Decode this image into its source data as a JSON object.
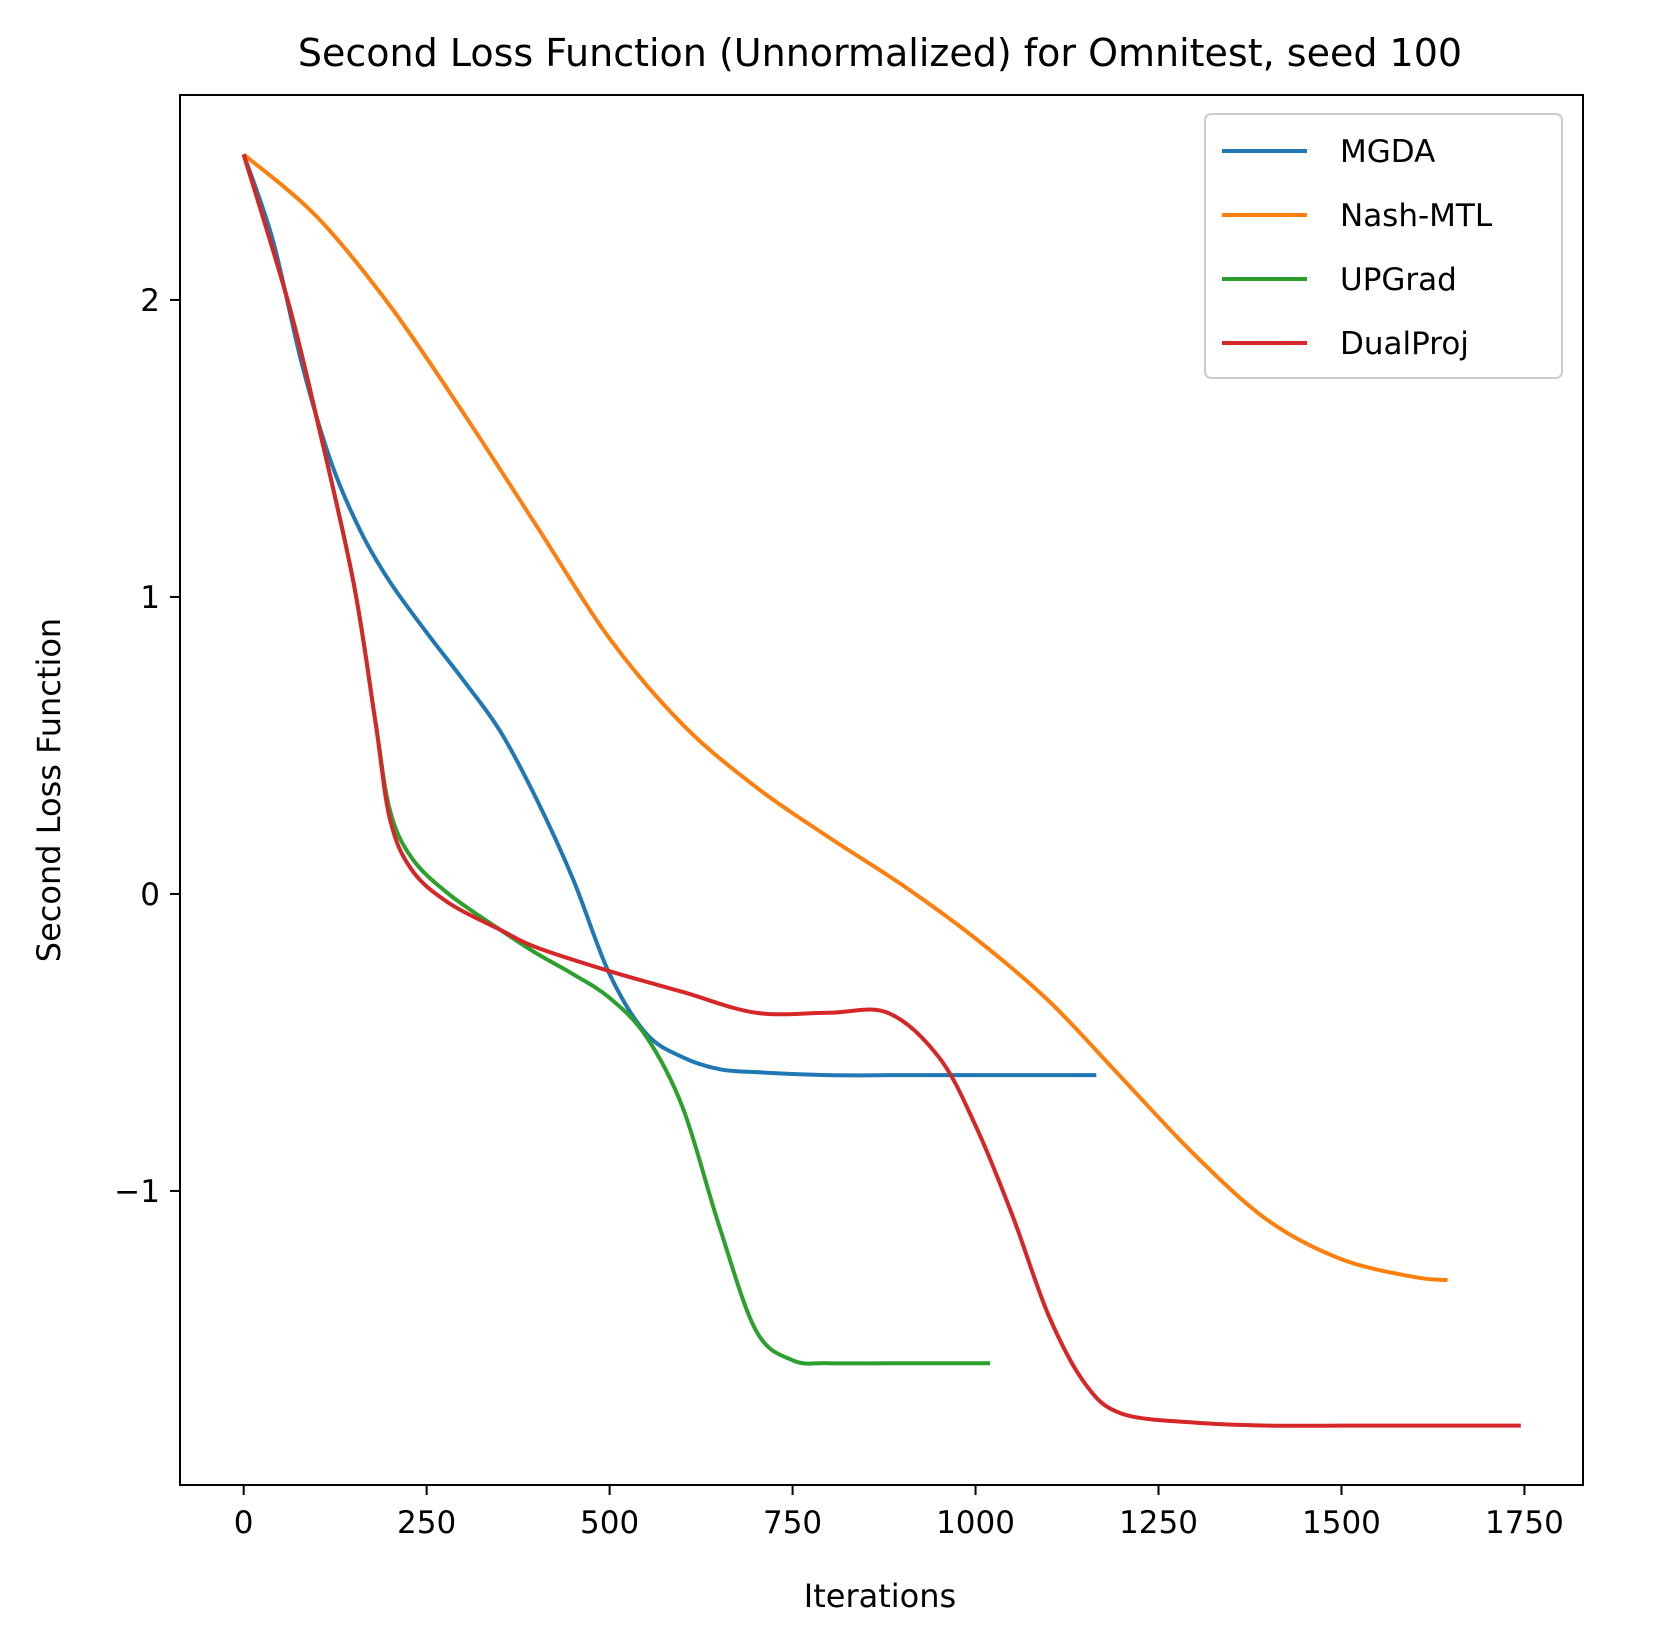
{
  "chart_data": {
    "type": "line",
    "title": "Second Loss Function (Unnormalized) for Omnitest, seed 100",
    "xlabel": "Iterations",
    "ylabel": "Second Loss Function",
    "xlim": [
      -87,
      1830
    ],
    "ylim": [
      -1.99,
      2.69
    ],
    "xticks": [
      0,
      250,
      500,
      750,
      1000,
      1250,
      1500,
      1750
    ],
    "xtick_labels": [
      "0",
      "250",
      "500",
      "750",
      "1000",
      "1250",
      "1500",
      "1750"
    ],
    "yticks": [
      -1,
      0,
      1,
      2
    ],
    "ytick_labels": [
      "−1",
      "0",
      "1",
      "2"
    ],
    "grid": false,
    "legend_position": "top-right",
    "series": [
      {
        "name": "MGDA",
        "color": "#1f77b4",
        "points": [
          [
            0,
            2.49
          ],
          [
            40,
            2.2
          ],
          [
            80,
            1.78
          ],
          [
            120,
            1.45
          ],
          [
            160,
            1.22
          ],
          [
            200,
            1.05
          ],
          [
            250,
            0.88
          ],
          [
            300,
            0.72
          ],
          [
            350,
            0.55
          ],
          [
            400,
            0.32
          ],
          [
            450,
            0.05
          ],
          [
            500,
            -0.27
          ],
          [
            550,
            -0.47
          ],
          [
            600,
            -0.55
          ],
          [
            650,
            -0.59
          ],
          [
            700,
            -0.6
          ],
          [
            800,
            -0.61
          ],
          [
            900,
            -0.61
          ],
          [
            1000,
            -0.61
          ],
          [
            1100,
            -0.61
          ],
          [
            1165,
            -0.61
          ]
        ]
      },
      {
        "name": "Nash-MTL",
        "color": "#ff7f0e",
        "points": [
          [
            0,
            2.49
          ],
          [
            100,
            2.28
          ],
          [
            200,
            1.98
          ],
          [
            300,
            1.62
          ],
          [
            400,
            1.24
          ],
          [
            500,
            0.86
          ],
          [
            600,
            0.57
          ],
          [
            700,
            0.36
          ],
          [
            800,
            0.19
          ],
          [
            900,
            0.03
          ],
          [
            1000,
            -0.15
          ],
          [
            1100,
            -0.36
          ],
          [
            1200,
            -0.62
          ],
          [
            1300,
            -0.88
          ],
          [
            1400,
            -1.1
          ],
          [
            1500,
            -1.23
          ],
          [
            1600,
            -1.29
          ],
          [
            1645,
            -1.3
          ]
        ]
      },
      {
        "name": "UPGrad",
        "color": "#2ca02c",
        "points": [
          [
            0,
            2.49
          ],
          [
            60,
            2.0
          ],
          [
            100,
            1.6
          ],
          [
            150,
            1.05
          ],
          [
            180,
            0.58
          ],
          [
            200,
            0.28
          ],
          [
            230,
            0.12
          ],
          [
            280,
            0.0
          ],
          [
            350,
            -0.12
          ],
          [
            400,
            -0.2
          ],
          [
            450,
            -0.27
          ],
          [
            500,
            -0.35
          ],
          [
            550,
            -0.48
          ],
          [
            600,
            -0.72
          ],
          [
            650,
            -1.12
          ],
          [
            700,
            -1.47
          ],
          [
            750,
            -1.57
          ],
          [
            800,
            -1.58
          ],
          [
            900,
            -1.58
          ],
          [
            1020,
            -1.58
          ]
        ]
      },
      {
        "name": "DualProj",
        "color": "#d62728",
        "points": [
          [
            0,
            2.49
          ],
          [
            60,
            2.0
          ],
          [
            100,
            1.6
          ],
          [
            150,
            1.05
          ],
          [
            180,
            0.58
          ],
          [
            200,
            0.25
          ],
          [
            230,
            0.08
          ],
          [
            280,
            -0.03
          ],
          [
            350,
            -0.12
          ],
          [
            400,
            -0.18
          ],
          [
            500,
            -0.26
          ],
          [
            600,
            -0.33
          ],
          [
            700,
            -0.4
          ],
          [
            800,
            -0.4
          ],
          [
            880,
            -0.4
          ],
          [
            950,
            -0.55
          ],
          [
            1000,
            -0.78
          ],
          [
            1050,
            -1.08
          ],
          [
            1100,
            -1.42
          ],
          [
            1150,
            -1.65
          ],
          [
            1200,
            -1.75
          ],
          [
            1300,
            -1.78
          ],
          [
            1400,
            -1.79
          ],
          [
            1500,
            -1.79
          ],
          [
            1600,
            -1.79
          ],
          [
            1745,
            -1.79
          ]
        ]
      }
    ]
  }
}
